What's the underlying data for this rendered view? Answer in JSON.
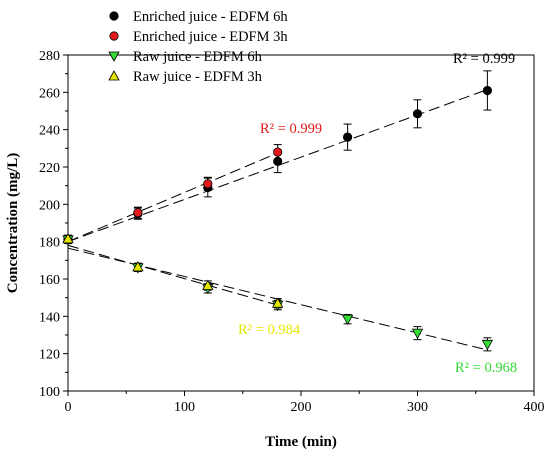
{
  "chart_data": {
    "type": "scatter",
    "xlabel": "Time (min)",
    "ylabel": "Concentration (mg/L)",
    "xlim": [
      0,
      400
    ],
    "ylim": [
      100,
      280
    ],
    "xticks": [
      "0",
      "100",
      "200",
      "300",
      "400"
    ],
    "yticks": [
      "100",
      "120",
      "140",
      "160",
      "180",
      "200",
      "220",
      "240",
      "260",
      "280"
    ],
    "grid": false,
    "legend_position": "top-left",
    "series": [
      {
        "name": "Enriched juice - EDFM 6h",
        "marker": "circle",
        "color": "#000000",
        "x": [
          0,
          60,
          120,
          180,
          240,
          300,
          360
        ],
        "y": [
          181,
          195,
          209,
          223,
          236,
          248.5,
          261
        ],
        "error": [
          2,
          3,
          5,
          6,
          7,
          7.5,
          10.5
        ],
        "fit": {
          "from": [
            0,
            180
          ],
          "to": [
            360,
            261.5
          ]
        },
        "r2": {
          "text": "R² = 0.999",
          "color": "#000000"
        }
      },
      {
        "name": "Enriched juice - EDFM 3h",
        "marker": "circle",
        "color": "#e31a1c",
        "x": [
          0,
          60,
          120,
          180
        ],
        "y": [
          181,
          195.5,
          211,
          228
        ],
        "error": [
          2,
          3,
          3.5,
          4
        ],
        "fit": {
          "from": [
            0,
            180
          ],
          "to": [
            180,
            227.5
          ]
        },
        "r2": {
          "text": "R² = 0.999",
          "color": "#e31a1c"
        }
      },
      {
        "name": "Raw juice - EDFM 6h",
        "marker": "triangle-down",
        "color": "#33dd33",
        "x": [
          0,
          60,
          120,
          180,
          240,
          300,
          360
        ],
        "y": [
          181,
          166,
          155,
          146,
          138.5,
          131,
          125
        ],
        "error": [
          2,
          2,
          2.5,
          2.5,
          2.5,
          3.5,
          3.5
        ],
        "fit": {
          "from": [
            0,
            176.5
          ],
          "to": [
            360,
            122
          ]
        },
        "r2": {
          "text": "R² = 0.968",
          "color": "#33dd33"
        }
      },
      {
        "name": "Raw juice - EDFM 3h",
        "marker": "triangle-up",
        "color": "#e6e600",
        "x": [
          0,
          60,
          120,
          180
        ],
        "y": [
          181.5,
          166.5,
          156.5,
          147
        ],
        "error": [
          2,
          2,
          2.5,
          2.5
        ],
        "fit": {
          "from": [
            0,
            178
          ],
          "to": [
            180,
            146
          ]
        },
        "r2": {
          "text": "R² = 0.984",
          "color": "#e6e600"
        }
      }
    ]
  }
}
